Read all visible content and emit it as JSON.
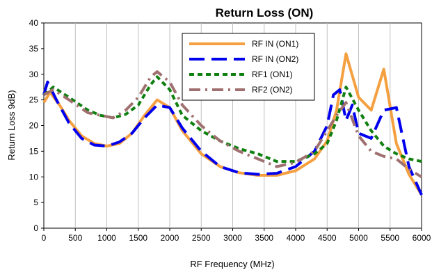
{
  "chart_data": {
    "type": "line",
    "title": "Return Loss (ON)",
    "xlabel": "RF Frequency (MHz)",
    "ylabel": "Return Loss 9dB)",
    "xlim": [
      0,
      6000
    ],
    "ylim": [
      0,
      40
    ],
    "x_ticks": [
      0,
      500,
      1000,
      1500,
      2000,
      2500,
      3000,
      3500,
      4000,
      4500,
      5000,
      5500,
      6000
    ],
    "y_ticks": [
      0,
      5,
      10,
      15,
      20,
      25,
      30,
      35,
      40
    ],
    "grid": "vertical",
    "legend_position": "top-right-inside",
    "series": [
      {
        "name": "RF IN (ON1)",
        "color": "#f5a040",
        "dash": "solid",
        "points": [
          [
            0,
            24.5
          ],
          [
            100,
            26.5
          ],
          [
            250,
            24
          ],
          [
            400,
            21
          ],
          [
            600,
            18
          ],
          [
            800,
            16.5
          ],
          [
            1000,
            16
          ],
          [
            1200,
            16.5
          ],
          [
            1400,
            18.5
          ],
          [
            1600,
            22
          ],
          [
            1800,
            25
          ],
          [
            2000,
            23.5
          ],
          [
            2200,
            19
          ],
          [
            2500,
            14.5
          ],
          [
            2800,
            12
          ],
          [
            3100,
            10.8
          ],
          [
            3400,
            10.3
          ],
          [
            3700,
            10.3
          ],
          [
            4000,
            11.2
          ],
          [
            4300,
            13.5
          ],
          [
            4500,
            17
          ],
          [
            4650,
            23
          ],
          [
            4800,
            34
          ],
          [
            5000,
            25.5
          ],
          [
            5200,
            23
          ],
          [
            5400,
            31
          ],
          [
            5600,
            16.5
          ],
          [
            5800,
            10.5
          ],
          [
            6000,
            6.5
          ]
        ]
      },
      {
        "name": "RF IN (ON2)",
        "color": "#0000ee",
        "dash": "long",
        "points": [
          [
            0,
            26
          ],
          [
            60,
            28.5
          ],
          [
            200,
            25
          ],
          [
            400,
            20.5
          ],
          [
            600,
            17.5
          ],
          [
            800,
            16.2
          ],
          [
            1000,
            16
          ],
          [
            1200,
            16.8
          ],
          [
            1400,
            18.5
          ],
          [
            1600,
            21.5
          ],
          [
            1800,
            24
          ],
          [
            2000,
            23.5
          ],
          [
            2200,
            19.5
          ],
          [
            2500,
            15
          ],
          [
            2800,
            12
          ],
          [
            3100,
            10.8
          ],
          [
            3400,
            10.5
          ],
          [
            3700,
            10.7
          ],
          [
            4000,
            12
          ],
          [
            4300,
            15
          ],
          [
            4500,
            20
          ],
          [
            4600,
            26
          ],
          [
            4700,
            27
          ],
          [
            4800,
            21
          ],
          [
            4900,
            24
          ],
          [
            5000,
            18.5
          ],
          [
            5200,
            17.5
          ],
          [
            5400,
            23
          ],
          [
            5600,
            23.5
          ],
          [
            5800,
            12
          ],
          [
            6000,
            6.5
          ]
        ]
      },
      {
        "name": "RF1 (ON1)",
        "color": "#108010",
        "dash": "short",
        "points": [
          [
            0,
            26
          ],
          [
            150,
            27.5
          ],
          [
            400,
            25.5
          ],
          [
            700,
            23
          ],
          [
            900,
            22
          ],
          [
            1100,
            21.5
          ],
          [
            1300,
            22.2
          ],
          [
            1500,
            24
          ],
          [
            1700,
            28
          ],
          [
            1800,
            29.5
          ],
          [
            2000,
            27
          ],
          [
            2200,
            22
          ],
          [
            2500,
            19
          ],
          [
            2800,
            17
          ],
          [
            3100,
            15.5
          ],
          [
            3400,
            14.5
          ],
          [
            3700,
            13
          ],
          [
            4000,
            13
          ],
          [
            4300,
            14.5
          ],
          [
            4500,
            16.5
          ],
          [
            4650,
            21
          ],
          [
            4800,
            27.5
          ],
          [
            5000,
            23
          ],
          [
            5200,
            19
          ],
          [
            5400,
            16
          ],
          [
            5600,
            14.5
          ],
          [
            5800,
            13.5
          ],
          [
            6000,
            13
          ]
        ]
      },
      {
        "name": "RF2 (ON2)",
        "color": "#a07070",
        "dash": "dashdot",
        "points": [
          [
            0,
            26
          ],
          [
            150,
            27
          ],
          [
            400,
            25
          ],
          [
            700,
            22.5
          ],
          [
            900,
            22
          ],
          [
            1100,
            21.5
          ],
          [
            1300,
            23
          ],
          [
            1500,
            25.5
          ],
          [
            1700,
            29.5
          ],
          [
            1800,
            30.5
          ],
          [
            2000,
            28.5
          ],
          [
            2200,
            24
          ],
          [
            2500,
            20
          ],
          [
            2800,
            17
          ],
          [
            3100,
            15
          ],
          [
            3400,
            13.5
          ],
          [
            3700,
            12
          ],
          [
            4000,
            12.8
          ],
          [
            4300,
            15
          ],
          [
            4500,
            19
          ],
          [
            4650,
            22
          ],
          [
            4800,
            24.5
          ],
          [
            5000,
            18
          ],
          [
            5200,
            15
          ],
          [
            5400,
            14
          ],
          [
            5600,
            13.5
          ],
          [
            5800,
            11.5
          ],
          [
            6000,
            10
          ]
        ]
      }
    ]
  }
}
